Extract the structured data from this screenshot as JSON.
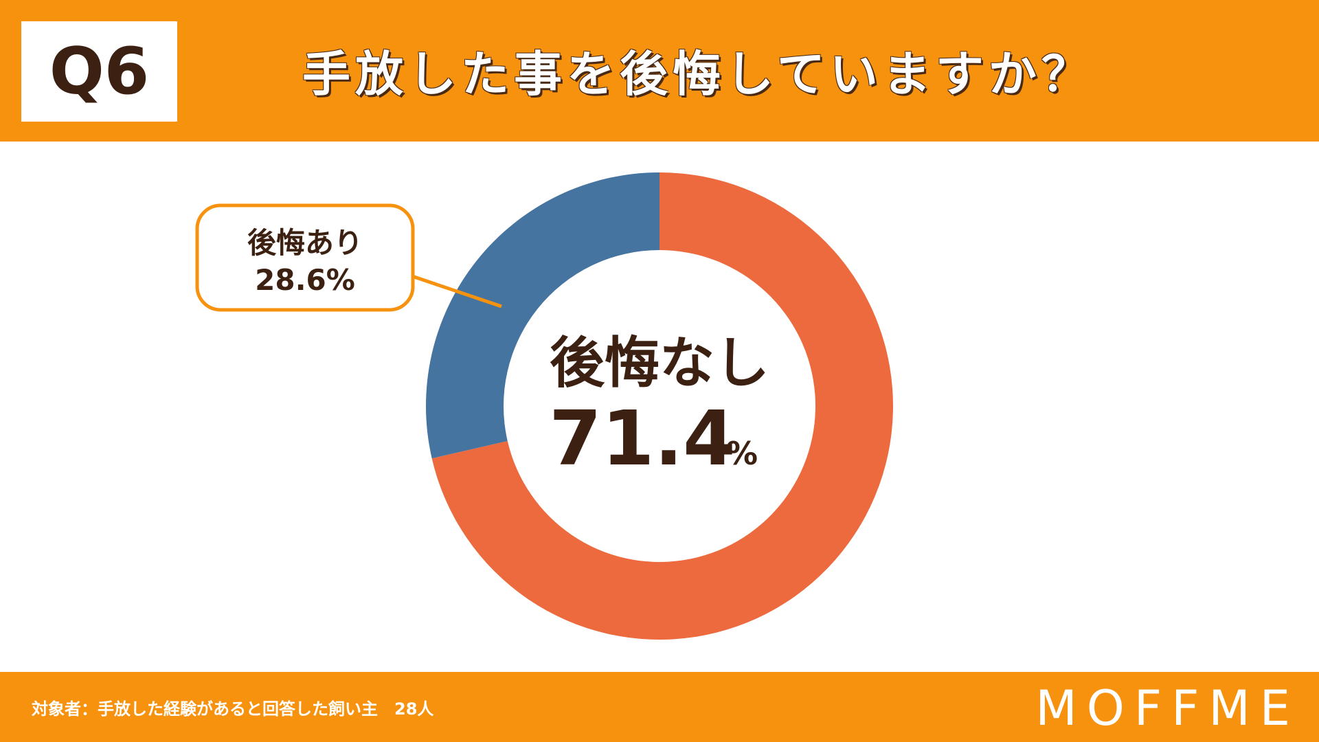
{
  "question": {
    "number": "Q6",
    "title": "手放した事を後悔していますか？"
  },
  "chart_data": {
    "type": "pie",
    "categories": [
      "後悔なし",
      "後悔あり"
    ],
    "values": [
      71.4,
      28.6
    ],
    "labels": [
      "71.4",
      "28.6%"
    ],
    "unit": "%",
    "colors": {
      "後悔なし": "#ec6a3e",
      "後悔あり": "#44749f"
    }
  },
  "callout": {
    "label": "後悔あり",
    "value": "28.6%",
    "border_color": "#f7920f"
  },
  "center": {
    "label": "後悔なし",
    "value": "71.4",
    "unit": "%"
  },
  "footer": {
    "note": "対象者：手放した経験があると回答した飼い主　28人",
    "brand": "MOFFME"
  },
  "colors": {
    "accent": "#f7920f",
    "text": "#3c2012"
  }
}
